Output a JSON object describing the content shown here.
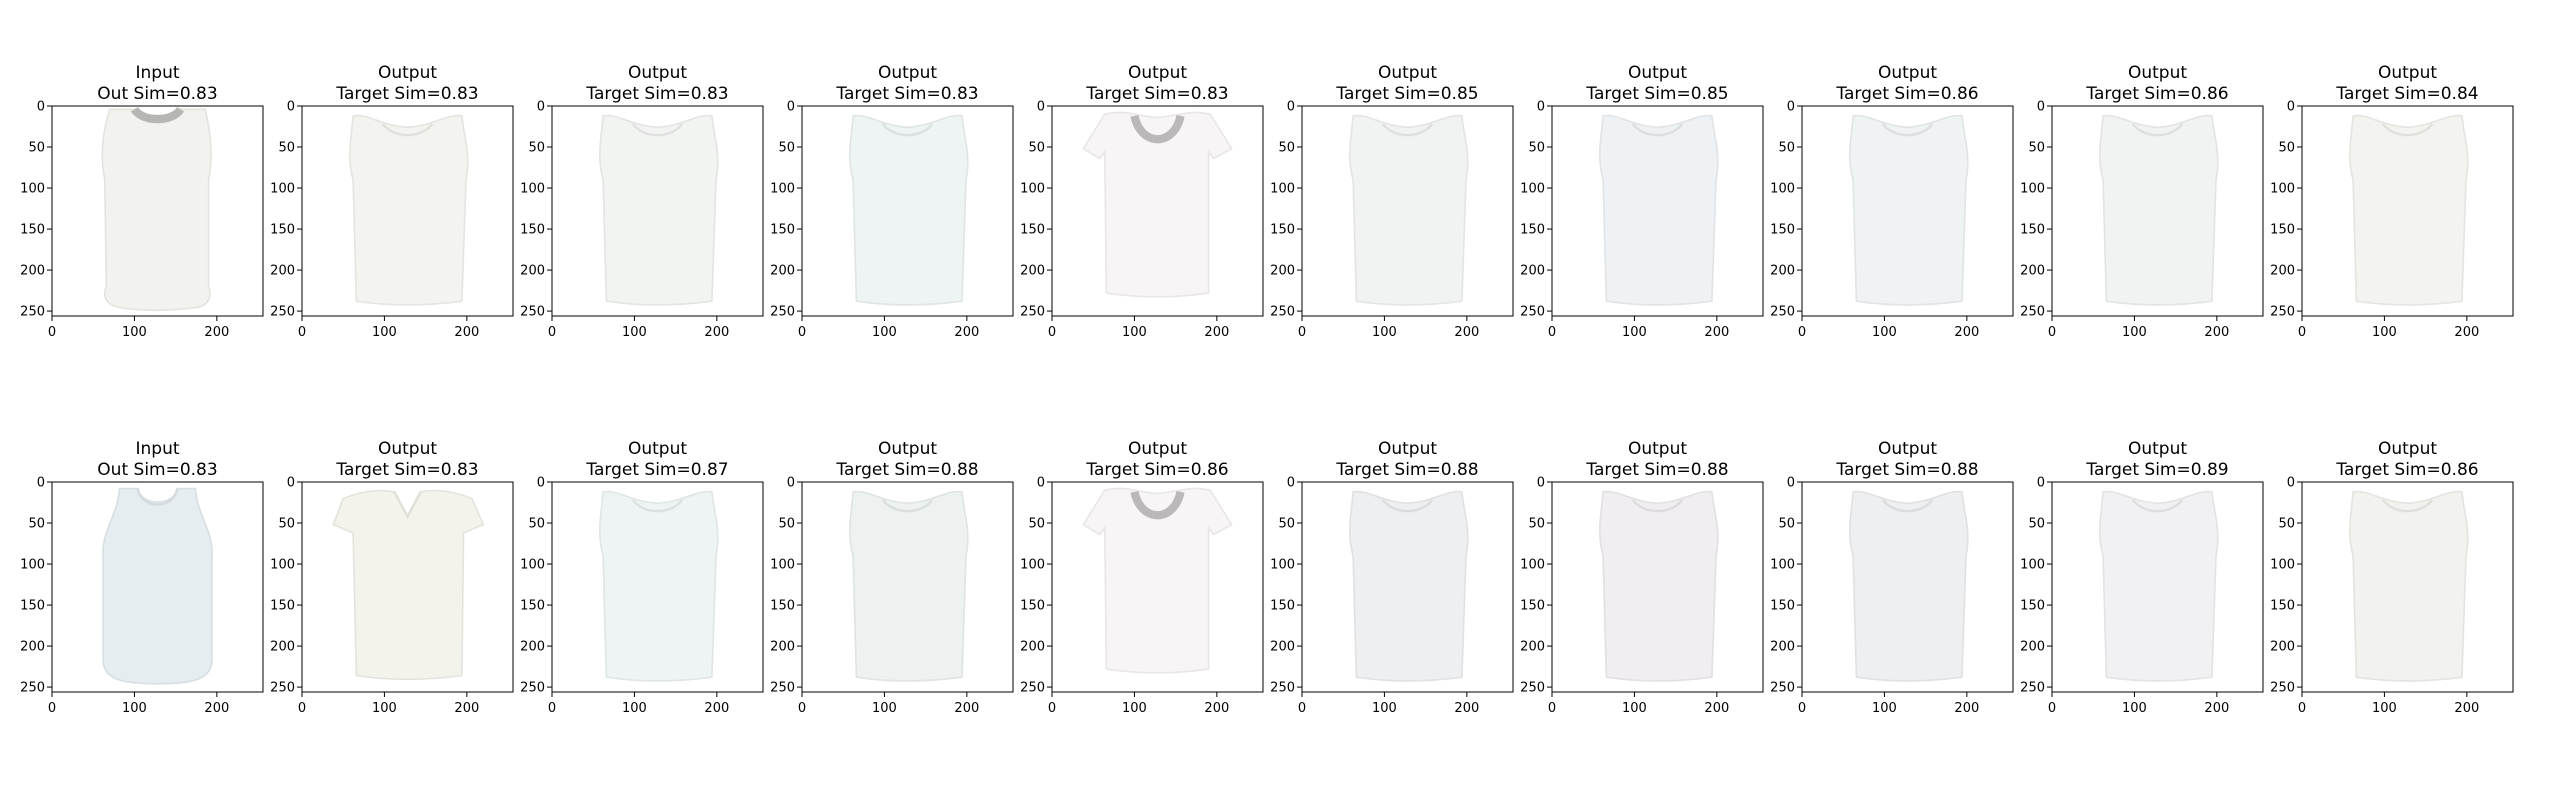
{
  "figure": {
    "background": "#ffffff",
    "axis_color": "#000000"
  },
  "chart_data": {
    "type": "image-grid",
    "rows": 2,
    "cols": 10,
    "xlim": [
      0,
      256
    ],
    "ylim": [
      256,
      0
    ],
    "xticks": [
      0,
      100,
      200
    ],
    "yticks": [
      0,
      50,
      100,
      150,
      200,
      250
    ],
    "panels": [
      {
        "row": 0,
        "col": 0,
        "title1": "Input",
        "title2": "Out Sim=0.83",
        "garment": "sleeveless-blouse",
        "tint": "#f2f2ee"
      },
      {
        "row": 0,
        "col": 1,
        "title1": "Output",
        "title2": "Target Sim=0.83",
        "garment": "tank",
        "tint": "#f3f4ef"
      },
      {
        "row": 0,
        "col": 2,
        "title1": "Output",
        "title2": "Target Sim=0.83",
        "garment": "tank",
        "tint": "#f2f4f2"
      },
      {
        "row": 0,
        "col": 3,
        "title1": "Output",
        "title2": "Target Sim=0.83",
        "garment": "tank",
        "tint": "#eef4f3"
      },
      {
        "row": 0,
        "col": 4,
        "title1": "Output",
        "title2": "Target Sim=0.83",
        "garment": "tshirt",
        "tint": "#f8f5f6"
      },
      {
        "row": 0,
        "col": 5,
        "title1": "Output",
        "title2": "Target Sim=0.85",
        "garment": "tank",
        "tint": "#f1f3f2"
      },
      {
        "row": 0,
        "col": 6,
        "title1": "Output",
        "title2": "Target Sim=0.85",
        "garment": "tank",
        "tint": "#eff2f4"
      },
      {
        "row": 0,
        "col": 7,
        "title1": "Output",
        "title2": "Target Sim=0.86",
        "garment": "tank",
        "tint": "#eff3f3"
      },
      {
        "row": 0,
        "col": 8,
        "title1": "Output",
        "title2": "Target Sim=0.86",
        "garment": "tank",
        "tint": "#f0f3f2"
      },
      {
        "row": 0,
        "col": 9,
        "title1": "Output",
        "title2": "Target Sim=0.84",
        "garment": "tank",
        "tint": "#f3f3ef"
      },
      {
        "row": 1,
        "col": 0,
        "title1": "Input",
        "title2": "Out Sim=0.83",
        "garment": "racerback",
        "tint": "#e6edf0"
      },
      {
        "row": 1,
        "col": 1,
        "title1": "Output",
        "title2": "Target Sim=0.83",
        "garment": "vneck",
        "tint": "#f3f3ec"
      },
      {
        "row": 1,
        "col": 2,
        "title1": "Output",
        "title2": "Target Sim=0.87",
        "garment": "tank",
        "tint": "#eef4f4"
      },
      {
        "row": 1,
        "col": 3,
        "title1": "Output",
        "title2": "Target Sim=0.88",
        "garment": "tank",
        "tint": "#edf2f0"
      },
      {
        "row": 1,
        "col": 4,
        "title1": "Output",
        "title2": "Target Sim=0.86",
        "garment": "tshirt",
        "tint": "#f8f5f6"
      },
      {
        "row": 1,
        "col": 5,
        "title1": "Output",
        "title2": "Target Sim=0.88",
        "garment": "tank",
        "tint": "#eeeff0"
      },
      {
        "row": 1,
        "col": 6,
        "title1": "Output",
        "title2": "Target Sim=0.88",
        "garment": "tank",
        "tint": "#f0eef0"
      },
      {
        "row": 1,
        "col": 7,
        "title1": "Output",
        "title2": "Target Sim=0.88",
        "garment": "tank",
        "tint": "#eeeff0"
      },
      {
        "row": 1,
        "col": 8,
        "title1": "Output",
        "title2": "Target Sim=0.89",
        "garment": "tank",
        "tint": "#f1f1f3"
      },
      {
        "row": 1,
        "col": 9,
        "title1": "Output",
        "title2": "Target Sim=0.86",
        "garment": "tank",
        "tint": "#f2f2ee"
      }
    ]
  }
}
